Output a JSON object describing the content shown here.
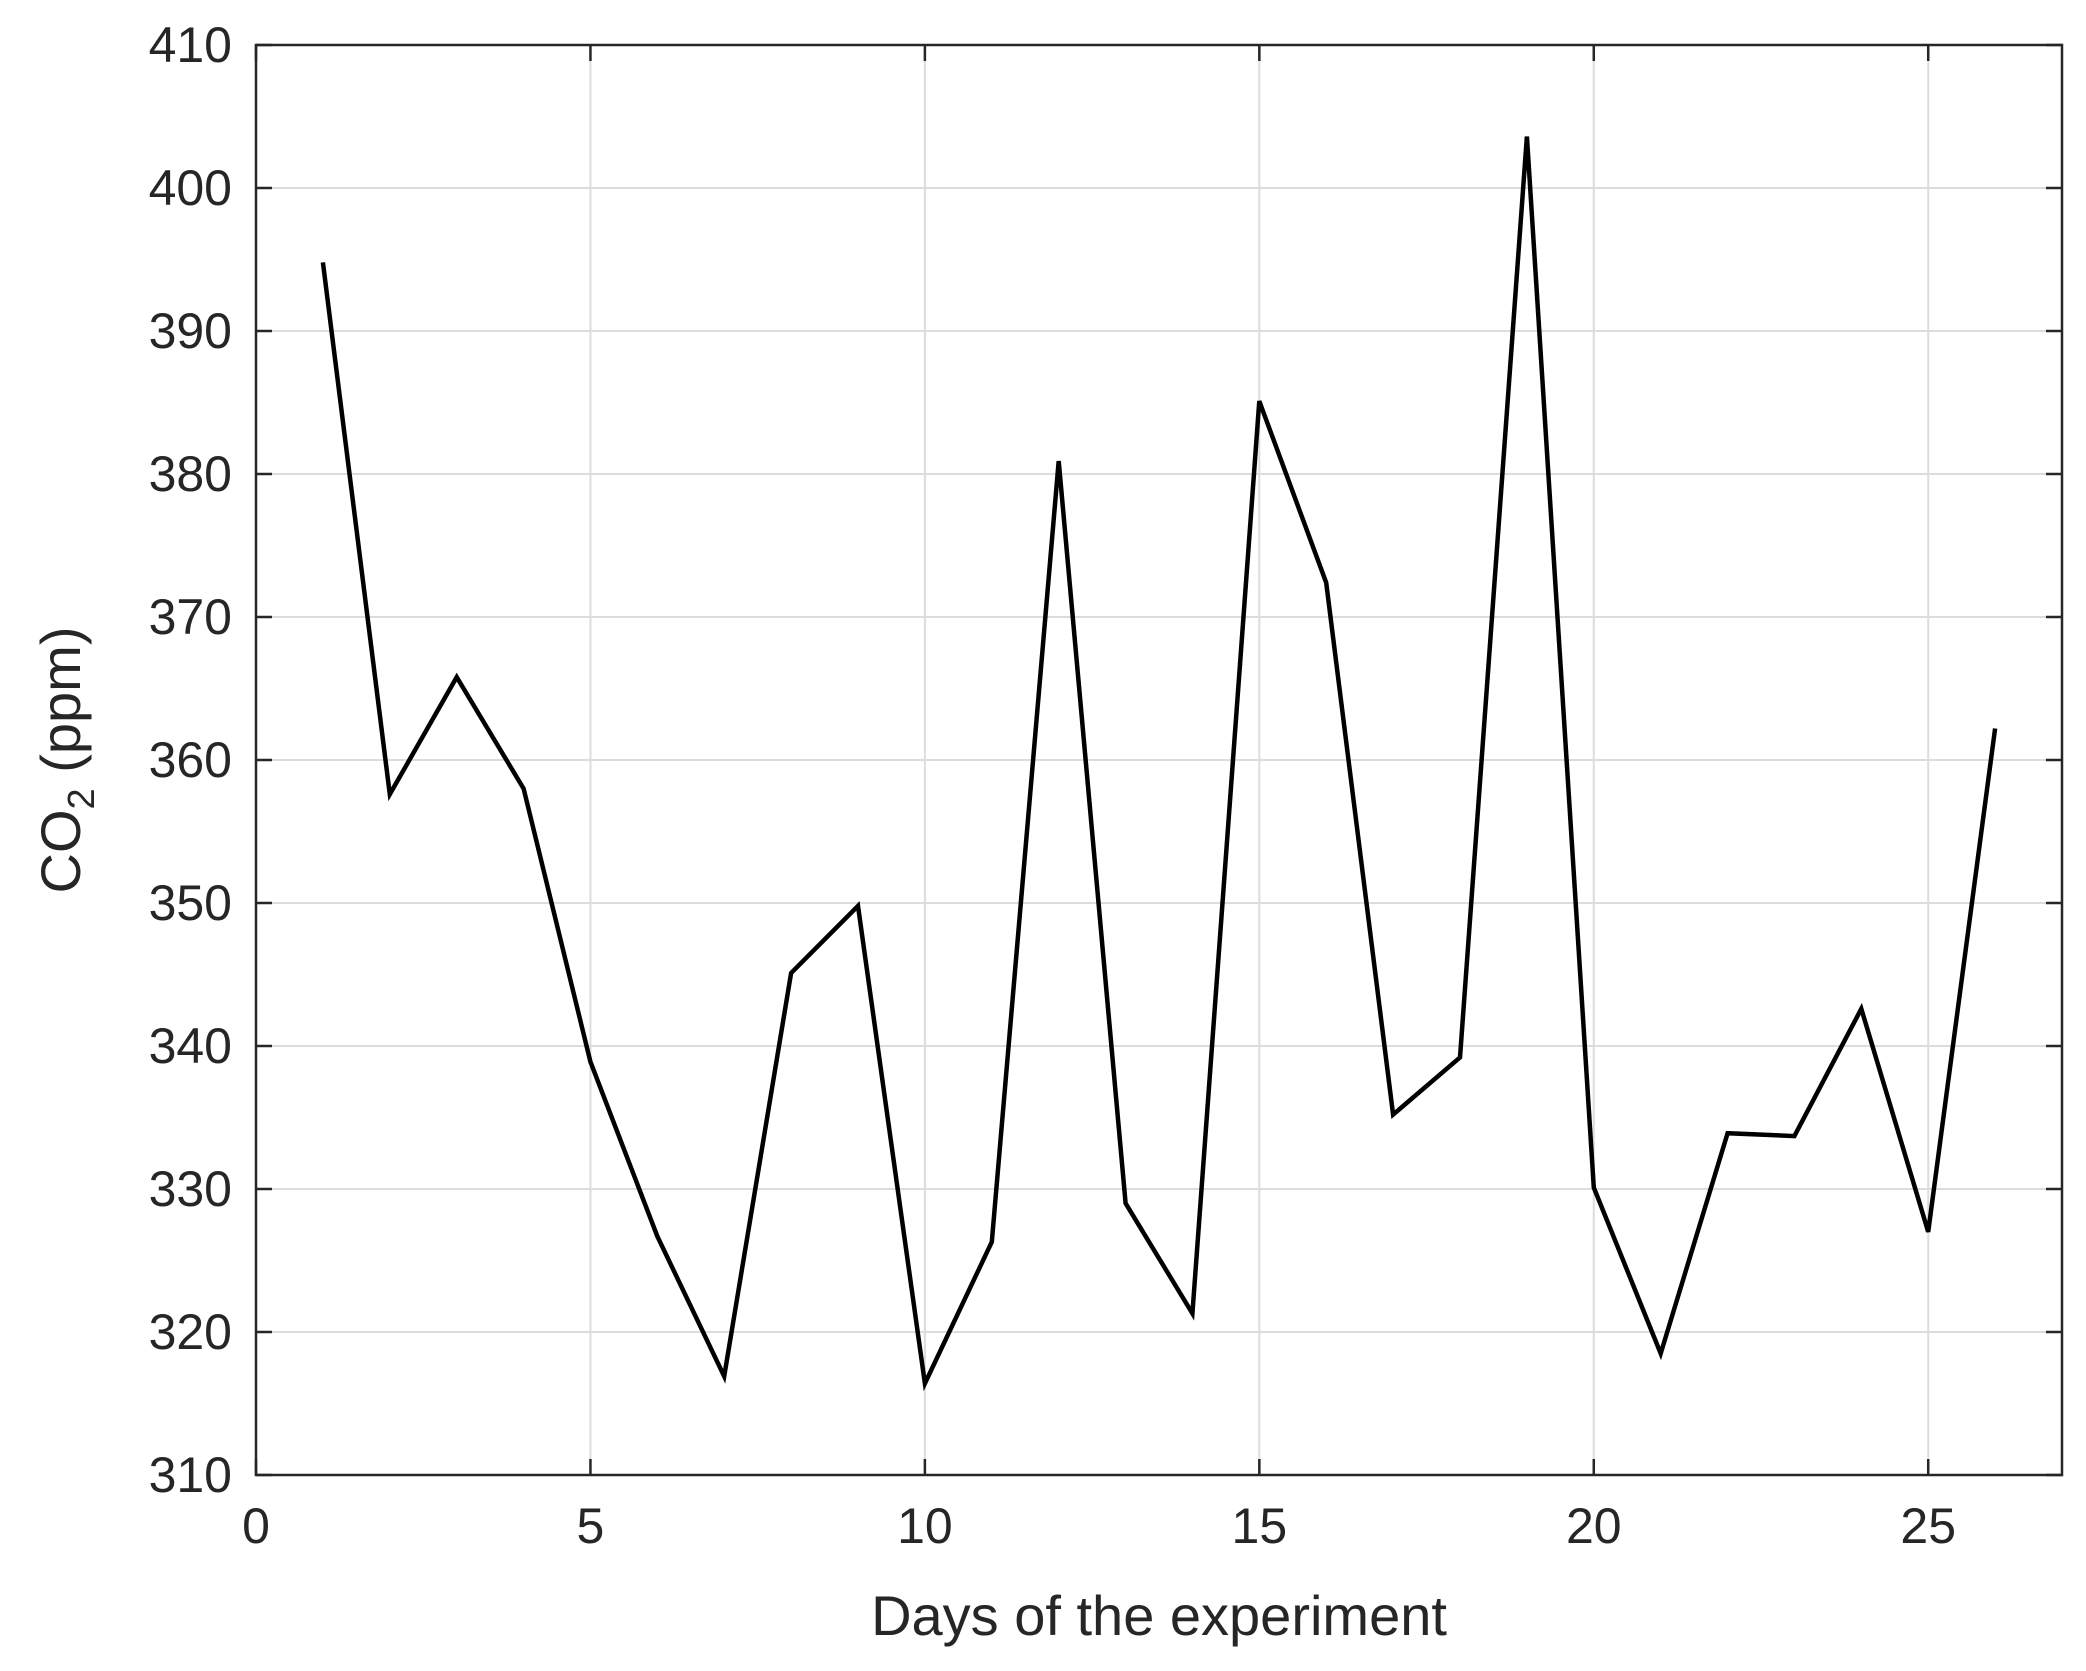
{
  "chart_data": {
    "type": "line",
    "title": "",
    "xlabel": "Days of the experiment",
    "ylabel": {
      "prefix": "CO",
      "subscript": "2",
      "suffix": " (ppm)"
    },
    "xlim": [
      0,
      27
    ],
    "ylim": [
      310,
      410
    ],
    "xticks": [
      0,
      5,
      10,
      15,
      20,
      25
    ],
    "yticks": [
      310,
      320,
      330,
      340,
      350,
      360,
      370,
      380,
      390,
      400,
      410
    ],
    "grid": true,
    "series": [
      {
        "color": "#000000",
        "x": [
          1,
          2,
          3,
          4,
          5,
          6,
          7,
          8,
          9,
          10,
          11,
          12,
          13,
          14,
          15,
          16,
          17,
          18,
          19,
          20,
          21,
          22,
          23,
          24,
          25,
          26
        ],
        "y": [
          394.8,
          357.6,
          365.8,
          358.0,
          338.9,
          326.7,
          316.9,
          345.1,
          349.8,
          316.4,
          326.3,
          380.9,
          329.0,
          321.3,
          385.1,
          372.4,
          335.2,
          339.2,
          403.6,
          330.1,
          318.5,
          333.9,
          333.7,
          342.6,
          327.0,
          362.2
        ]
      }
    ]
  }
}
